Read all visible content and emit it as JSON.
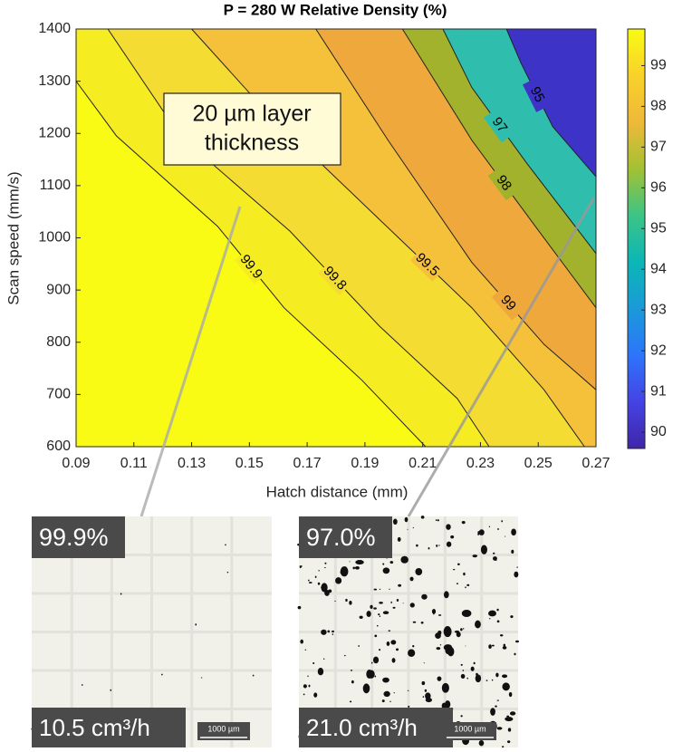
{
  "chart_data": {
    "type": "contour",
    "title": "P = 280 W Relative Density (%)",
    "x_label": "Hatch distance (mm)",
    "y_label": "Scan speed (mm/s)",
    "xlim": [
      0.09,
      0.27
    ],
    "ylim": [
      600,
      1400
    ],
    "xticks": [
      0.09,
      0.11,
      0.13,
      0.15,
      0.17,
      0.19,
      0.21,
      0.23,
      0.25,
      0.27
    ],
    "yticks": [
      600,
      700,
      800,
      900,
      1000,
      1100,
      1200,
      1300,
      1400
    ],
    "base_color": "#f9fb14",
    "contours": [
      {
        "level": 99.9,
        "fill": "#f6ec22",
        "x": [
          0.09,
          0.104,
          0.139,
          0.162,
          0.189,
          0.211
        ],
        "y": [
          1300,
          1195,
          1022,
          866,
          727,
          600
        ]
      },
      {
        "level": 99.8,
        "fill": "#f4dc32",
        "x": [
          0.101,
          0.126,
          0.164,
          0.195,
          0.222,
          0.233
        ],
        "y": [
          1400,
          1195,
          1013,
          831,
          692,
          600
        ]
      },
      {
        "level": 99.5,
        "fill": "#f6c13a",
        "x": [
          0.13,
          0.155,
          0.196,
          0.227,
          0.252,
          0.266
        ],
        "y": [
          1400,
          1247,
          1030,
          866,
          709,
          600
        ]
      },
      {
        "level": 99,
        "fill": "#efa83c",
        "x": [
          0.173,
          0.198,
          0.227,
          0.252,
          0.27
        ],
        "y": [
          1400,
          1187,
          953,
          796,
          709
        ]
      },
      {
        "level": 98,
        "fill": "#a3b22c",
        "x": [
          0.203,
          0.227,
          0.249,
          0.27
        ],
        "y": [
          1400,
          1187,
          1022,
          866
        ]
      },
      {
        "level": 97,
        "fill": "#2fbeae",
        "x": [
          0.217,
          0.227,
          0.246,
          0.27
        ],
        "y": [
          1400,
          1288,
          1143,
          970
        ]
      },
      {
        "level": 95,
        "fill": "#3d33c6",
        "x": [
          0.239,
          0.244,
          0.255,
          0.27
        ],
        "y": [
          1400,
          1335,
          1213,
          1117
        ]
      }
    ],
    "colorbar": {
      "lim": [
        89.6,
        99.9
      ],
      "ticks": [
        90,
        91,
        92,
        93,
        94,
        95,
        96,
        97,
        98,
        99
      ],
      "colors": [
        "#3e26a8",
        "#4543e4",
        "#2d75fb",
        "#1a9ad8",
        "#0cb6b6",
        "#3cc486",
        "#a3c133",
        "#eeb939",
        "#f9d12a",
        "#f9fb14"
      ]
    },
    "annotation": [
      "20 µm layer",
      "thickness"
    ]
  },
  "insets": [
    {
      "density": "99.9%",
      "rate": "10.5 cm³/h",
      "scale": "1000 µm"
    },
    {
      "density": "97.0%",
      "rate": "21.0 cm³/h",
      "scale": "1000 µm"
    }
  ]
}
